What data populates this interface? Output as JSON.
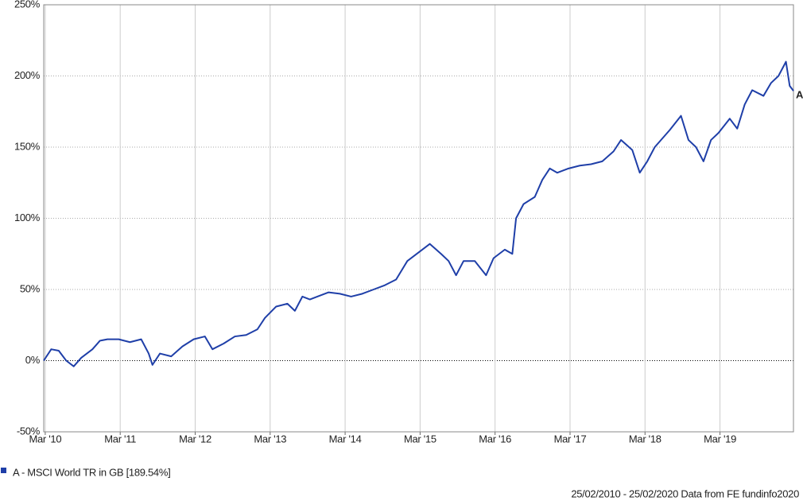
{
  "chart_data": {
    "type": "line",
    "x": [
      2010.15,
      2010.25,
      2010.35,
      2010.45,
      2010.55,
      2010.65,
      2010.8,
      2010.9,
      2011.0,
      2011.15,
      2011.3,
      2011.45,
      2011.55,
      2011.6,
      2011.7,
      2011.85,
      2012.0,
      2012.15,
      2012.3,
      2012.4,
      2012.55,
      2012.7,
      2012.85,
      2013.0,
      2013.1,
      2013.25,
      2013.4,
      2013.5,
      2013.6,
      2013.7,
      2013.8,
      2013.95,
      2014.1,
      2014.25,
      2014.4,
      2014.55,
      2014.7,
      2014.85,
      2015.0,
      2015.15,
      2015.3,
      2015.45,
      2015.55,
      2015.65,
      2015.75,
      2015.9,
      2016.05,
      2016.15,
      2016.3,
      2016.4,
      2016.45,
      2016.55,
      2016.7,
      2016.8,
      2016.9,
      2017.0,
      2017.15,
      2017.3,
      2017.45,
      2017.6,
      2017.75,
      2017.85,
      2018.0,
      2018.1,
      2018.2,
      2018.3,
      2018.5,
      2018.65,
      2018.75,
      2018.85,
      2018.95,
      2019.05,
      2019.15,
      2019.3,
      2019.4,
      2019.5,
      2019.6,
      2019.75,
      2019.85,
      2019.95,
      2020.05,
      2020.1,
      2020.15
    ],
    "series": [
      {
        "name": "A - MSCI World TR in GB [189.54%]",
        "end_label": "A",
        "color": "#1f3fa8",
        "values": [
          0,
          8,
          7,
          0,
          -4,
          2,
          8,
          14,
          15,
          15,
          13,
          15,
          5,
          -3,
          5,
          3,
          10,
          15,
          17,
          8,
          12,
          17,
          18,
          22,
          30,
          38,
          40,
          35,
          45,
          43,
          45,
          48,
          47,
          45,
          47,
          50,
          53,
          57,
          70,
          76,
          82,
          75,
          70,
          60,
          70,
          70,
          60,
          72,
          78,
          75,
          100,
          110,
          115,
          127,
          135,
          132,
          135,
          137,
          138,
          140,
          147,
          155,
          148,
          132,
          140,
          150,
          162,
          172,
          155,
          150,
          140,
          155,
          160,
          170,
          163,
          180,
          190,
          186,
          195,
          200,
          210,
          193,
          189.54
        ]
      }
    ],
    "xlim": [
      2010.15,
      2020.15
    ],
    "xticks": [
      {
        "value": 2010.17,
        "label": "Mar '10"
      },
      {
        "value": 2011.17,
        "label": "Mar '11"
      },
      {
        "value": 2012.17,
        "label": "Mar '12"
      },
      {
        "value": 2013.17,
        "label": "Mar '13"
      },
      {
        "value": 2014.17,
        "label": "Mar '14"
      },
      {
        "value": 2015.17,
        "label": "Mar '15"
      },
      {
        "value": 2016.17,
        "label": "Mar '16"
      },
      {
        "value": 2017.17,
        "label": "Mar '17"
      },
      {
        "value": 2018.17,
        "label": "Mar '18"
      },
      {
        "value": 2019.17,
        "label": "Mar '19"
      }
    ],
    "ylim": [
      -50,
      250
    ],
    "yticks": [
      {
        "value": -50,
        "label": "-50%"
      },
      {
        "value": 0,
        "label": "0%"
      },
      {
        "value": 50,
        "label": "50%"
      },
      {
        "value": 100,
        "label": "100%"
      },
      {
        "value": 150,
        "label": "150%"
      },
      {
        "value": 200,
        "label": "200%"
      },
      {
        "value": 250,
        "label": "250%"
      }
    ],
    "grid": true,
    "footer": "25/02/2010 - 25/02/2020 Data from FE fundinfo2020"
  }
}
